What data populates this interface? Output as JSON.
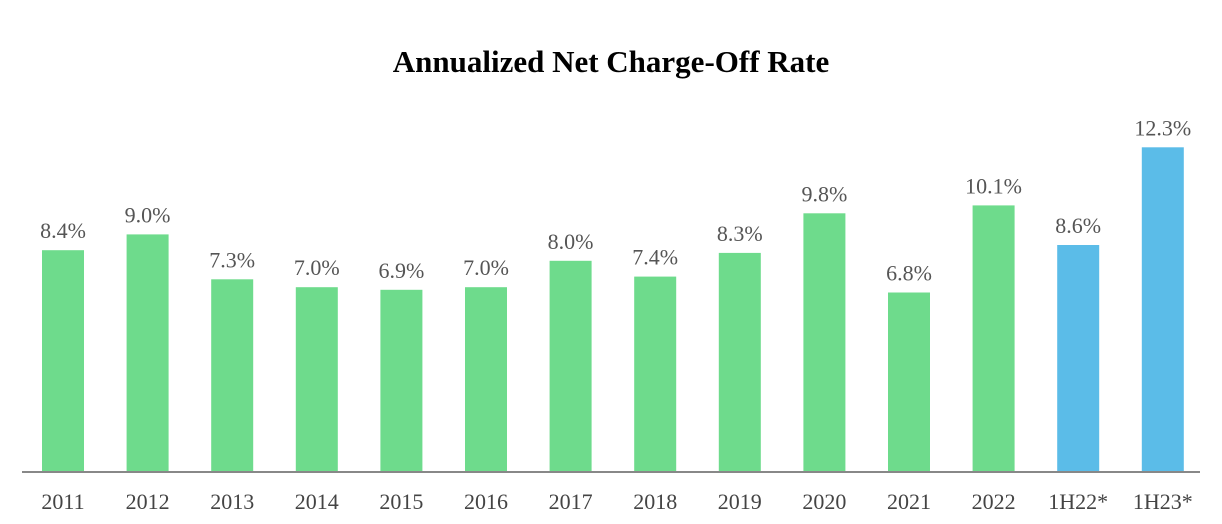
{
  "chart_data": {
    "type": "bar",
    "title": "Annualized Net Charge-Off Rate",
    "xlabel": "",
    "ylabel": "",
    "ylim": [
      0,
      14
    ],
    "grid": false,
    "legend": "none",
    "categories": [
      "2011",
      "2012",
      "2013",
      "2014",
      "2015",
      "2016",
      "2017",
      "2018",
      "2019",
      "2020",
      "2021",
      "2022",
      "1H22*",
      "1H23*"
    ],
    "values": [
      8.4,
      9.0,
      7.3,
      7.0,
      6.9,
      7.0,
      8.0,
      7.4,
      8.3,
      9.8,
      6.8,
      10.1,
      8.6,
      12.3
    ],
    "data_labels": [
      "8.4%",
      "9.0%",
      "7.3%",
      "7.0%",
      "6.9%",
      "7.0%",
      "8.0%",
      "7.4%",
      "8.3%",
      "9.8%",
      "6.8%",
      "10.1%",
      "8.6%",
      "12.3%"
    ],
    "bar_colors": [
      "#6edb8c",
      "#6edb8c",
      "#6edb8c",
      "#6edb8c",
      "#6edb8c",
      "#6edb8c",
      "#6edb8c",
      "#6edb8c",
      "#6edb8c",
      "#6edb8c",
      "#6edb8c",
      "#6edb8c",
      "#5bbce8",
      "#5bbce8"
    ],
    "axis_color": "#888888"
  }
}
